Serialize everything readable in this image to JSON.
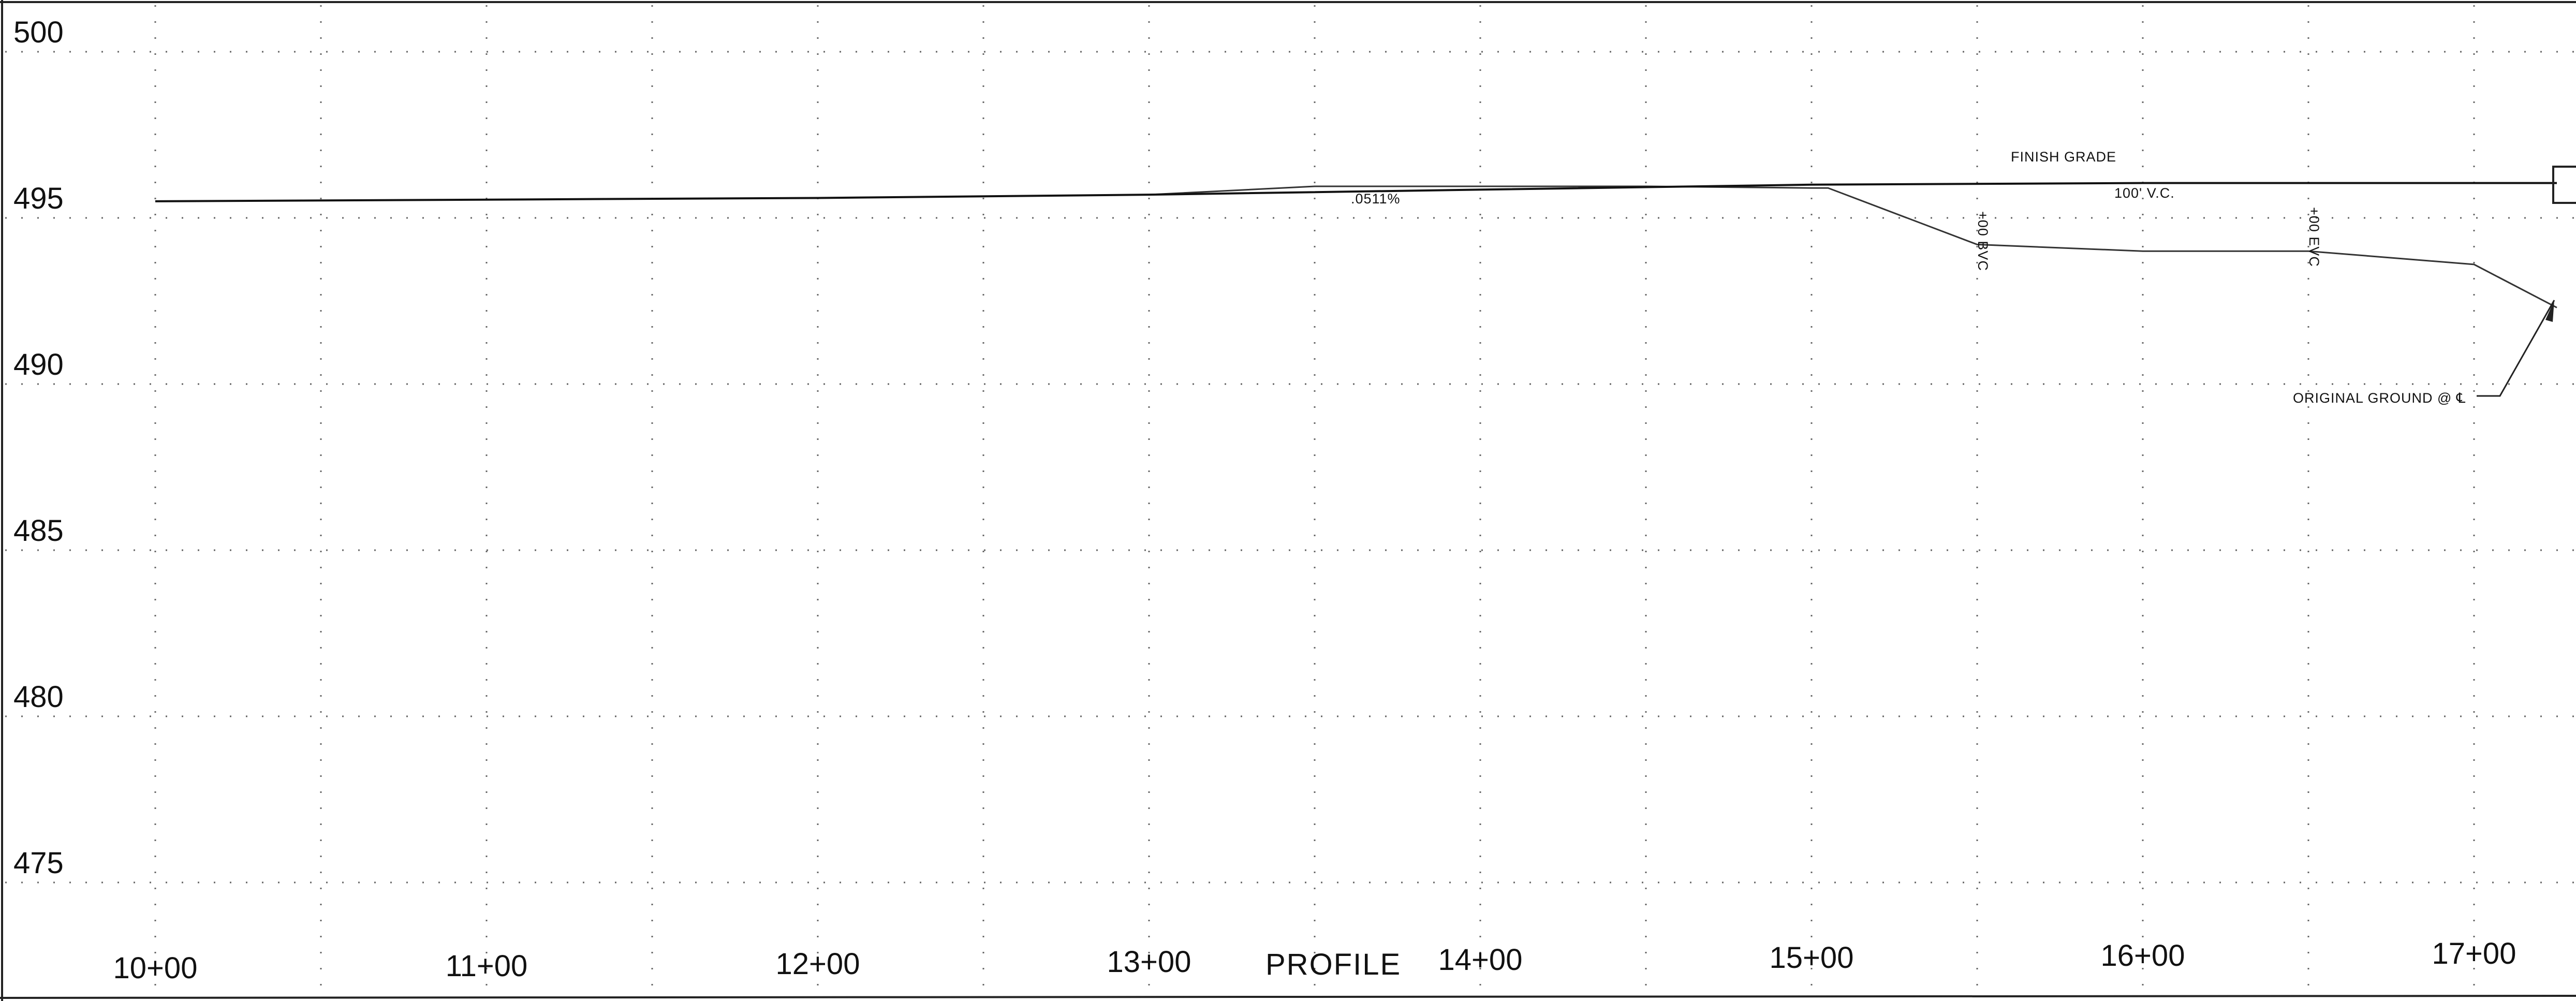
{
  "chart_data": {
    "type": "line",
    "title": "PROFILE",
    "y_ticks": [
      "500",
      "495",
      "490",
      "485",
      "480",
      "475"
    ],
    "x_ticks": [
      "10+00",
      "11+00",
      "12+00",
      "13+00",
      "14+00",
      "15+00",
      "16+00",
      "17+00"
    ],
    "ylim": [
      472,
      500
    ],
    "xlim": [
      1000,
      1725
    ],
    "grid": true,
    "series": [
      {
        "key": "finish-grade",
        "label": "FINISH GRADE",
        "points": [
          [
            1000,
            495.5
          ],
          [
            1100,
            495.55
          ],
          [
            1200,
            495.6
          ],
          [
            1300,
            495.7
          ],
          [
            1400,
            495.85
          ],
          [
            1500,
            496.0
          ],
          [
            1600,
            496.05
          ],
          [
            1700,
            496.05
          ],
          [
            1725,
            496.05
          ]
        ]
      },
      {
        "key": "original-ground",
        "label": "ORIGINAL GROUND @ ℄",
        "points": [
          [
            1000,
            495.5
          ],
          [
            1200,
            495.6
          ],
          [
            1300,
            495.7
          ],
          [
            1350,
            495.95
          ],
          [
            1400,
            495.95
          ],
          [
            1450,
            495.95
          ],
          [
            1500,
            495.9
          ],
          [
            1505,
            495.9
          ],
          [
            1550,
            494.2
          ],
          [
            1600,
            494.0
          ],
          [
            1650,
            494.0
          ],
          [
            1700,
            493.6
          ],
          [
            1725,
            492.3
          ]
        ]
      }
    ],
    "annotations": {
      "grade": ".0511%",
      "vc": "100' V.C.",
      "bvc": "+00 BVC",
      "evc": "+00 EVC"
    }
  }
}
